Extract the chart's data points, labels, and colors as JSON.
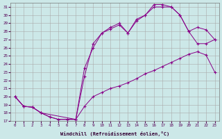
{
  "xlabel": "Windchill (Refroidissement éolien,°C)",
  "bg_color": "#cce8e8",
  "line_color": "#880088",
  "grid_color": "#aaaaaa",
  "xlim": [
    -0.5,
    23.5
  ],
  "ylim": [
    17,
    31.5
  ],
  "xticks": [
    0,
    1,
    2,
    3,
    4,
    5,
    6,
    7,
    8,
    9,
    10,
    11,
    12,
    13,
    14,
    15,
    16,
    17,
    18,
    19,
    20,
    21,
    22,
    23
  ],
  "yticks": [
    17,
    18,
    19,
    20,
    21,
    22,
    23,
    24,
    25,
    26,
    27,
    28,
    29,
    30,
    31
  ],
  "line1_x": [
    0,
    1,
    2,
    3,
    4,
    5,
    6,
    7,
    8,
    9,
    10,
    11,
    12,
    13,
    14,
    15,
    16,
    17,
    18,
    19,
    20,
    21,
    22,
    23
  ],
  "line1_y": [
    20,
    18.8,
    18.7,
    18.0,
    17.5,
    17.2,
    17.2,
    17.2,
    18.8,
    20.0,
    20.5,
    21.0,
    21.3,
    21.7,
    22.2,
    22.8,
    23.2,
    23.7,
    24.2,
    24.7,
    25.2,
    25.5,
    25.1,
    23.0
  ],
  "line2_x": [
    0,
    1,
    2,
    3,
    4,
    5,
    6,
    7,
    8,
    9,
    10,
    11,
    12,
    13,
    14,
    15,
    16,
    17,
    18,
    19,
    20,
    21,
    22,
    23
  ],
  "line2_y": [
    20,
    18.8,
    18.7,
    18.0,
    17.5,
    17.2,
    17.2,
    17.2,
    22.5,
    26.5,
    27.8,
    28.5,
    29.0,
    27.8,
    29.5,
    30.0,
    31.3,
    31.3,
    31.0,
    30.0,
    28.0,
    28.5,
    28.2,
    27.0
  ],
  "line3_x": [
    0,
    1,
    2,
    3,
    7,
    8,
    9,
    10,
    11,
    12,
    13,
    14,
    15,
    16,
    17,
    18,
    19,
    20,
    21,
    22,
    23
  ],
  "line3_y": [
    20,
    18.8,
    18.7,
    18.0,
    17.2,
    23.5,
    26.0,
    27.8,
    28.3,
    28.8,
    27.8,
    29.3,
    30.0,
    31.0,
    31.0,
    31.0,
    30.0,
    28.0,
    26.5,
    26.5,
    27.0
  ]
}
